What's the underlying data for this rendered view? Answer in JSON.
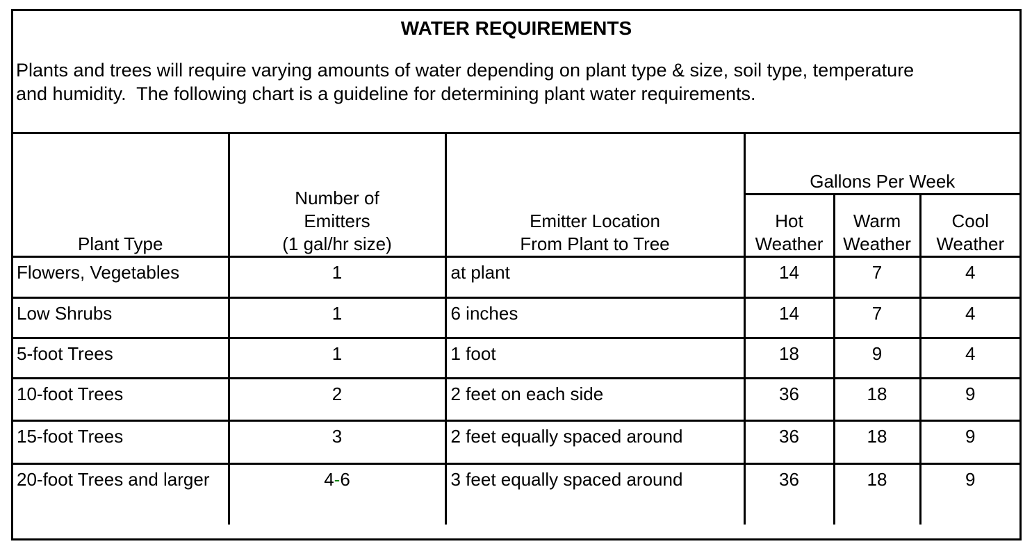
{
  "title": "WATER REQUIREMENTS",
  "intro_lines": [
    "Plants and trees will require varying amounts of water depending on plant type & size, soil type, temperature",
    "and humidity.  The following chart is a guideline for determining plant water requirements."
  ],
  "table": {
    "headers": {
      "plant_type": "Plant Type",
      "emitters_lines": [
        "Number of",
        "Emitters",
        "(1 gal/hr size)"
      ],
      "location_lines": [
        "Emitter Location",
        "From Plant to Tree"
      ],
      "gallons_per_week": "Gallons Per Week",
      "hot_lines": [
        "Hot",
        "Weather"
      ],
      "warm_lines": [
        "Warm",
        "Weather"
      ],
      "cool_lines": [
        "Cool",
        "Weather"
      ]
    },
    "rows": [
      {
        "plant_type": "Flowers, Vegetables",
        "emitters": "1",
        "location": "at plant",
        "hot": "14",
        "warm": "7",
        "cool": "4"
      },
      {
        "plant_type": "Low Shrubs",
        "emitters": "1",
        "location": "6 inches",
        "hot": "14",
        "warm": "7",
        "cool": "4"
      },
      {
        "plant_type": "5-foot Trees",
        "emitters": "1",
        "location": "1 foot",
        "hot": "18",
        "warm": "9",
        "cool": "4"
      },
      {
        "plant_type": "10-foot Trees",
        "emitters": "2",
        "location": "2 feet on each side",
        "hot": "36",
        "warm": "18",
        "cool": "9"
      },
      {
        "plant_type": "15-foot Trees",
        "emitters": "3",
        "location": "2 feet equally spaced around",
        "hot": "36",
        "warm": "18",
        "cool": "9"
      },
      {
        "plant_type": "20-foot Trees and larger",
        "emitters": "4-6",
        "location": "3 feet equally spaced around",
        "hot": "36",
        "warm": "18",
        "cool": "9"
      }
    ]
  },
  "colors": {
    "text": "#000000",
    "border": "#000000",
    "background": "#ffffff",
    "emitters_hyphen_accent": "#008000"
  }
}
